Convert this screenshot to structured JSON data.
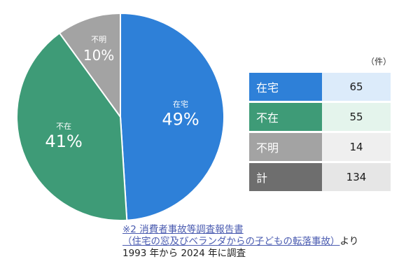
{
  "chart_data": {
    "type": "pie",
    "categories": [
      "在宅",
      "不在",
      "不明"
    ],
    "values": [
      49,
      41,
      10
    ],
    "unit": "%",
    "colors": [
      "#2E80D8",
      "#3E9B77",
      "#A3A3A3"
    ]
  },
  "table": {
    "unit": "（件）",
    "rows": [
      {
        "label": "在宅",
        "value": "65",
        "label_color": "#2E80D8",
        "value_color": "#DCEBFA"
      },
      {
        "label": "不在",
        "value": "55",
        "label_color": "#3E9B77",
        "value_color": "#E4F4EC"
      },
      {
        "label": "不明",
        "value": "14",
        "label_color": "#A3A3A3",
        "value_color": "#EFEFEF"
      },
      {
        "label": "計",
        "value": "134",
        "label_color": "#6E6E6E",
        "value_color": "#E6E6E6"
      }
    ]
  },
  "footer": {
    "link_line1": "※2 消費者事故等調査報告書",
    "link_line2": "（住宅の窓及びベランダからの子どもの転落事故）",
    "suffix": "より",
    "line3": "1993 年から 2024 年に調査"
  }
}
